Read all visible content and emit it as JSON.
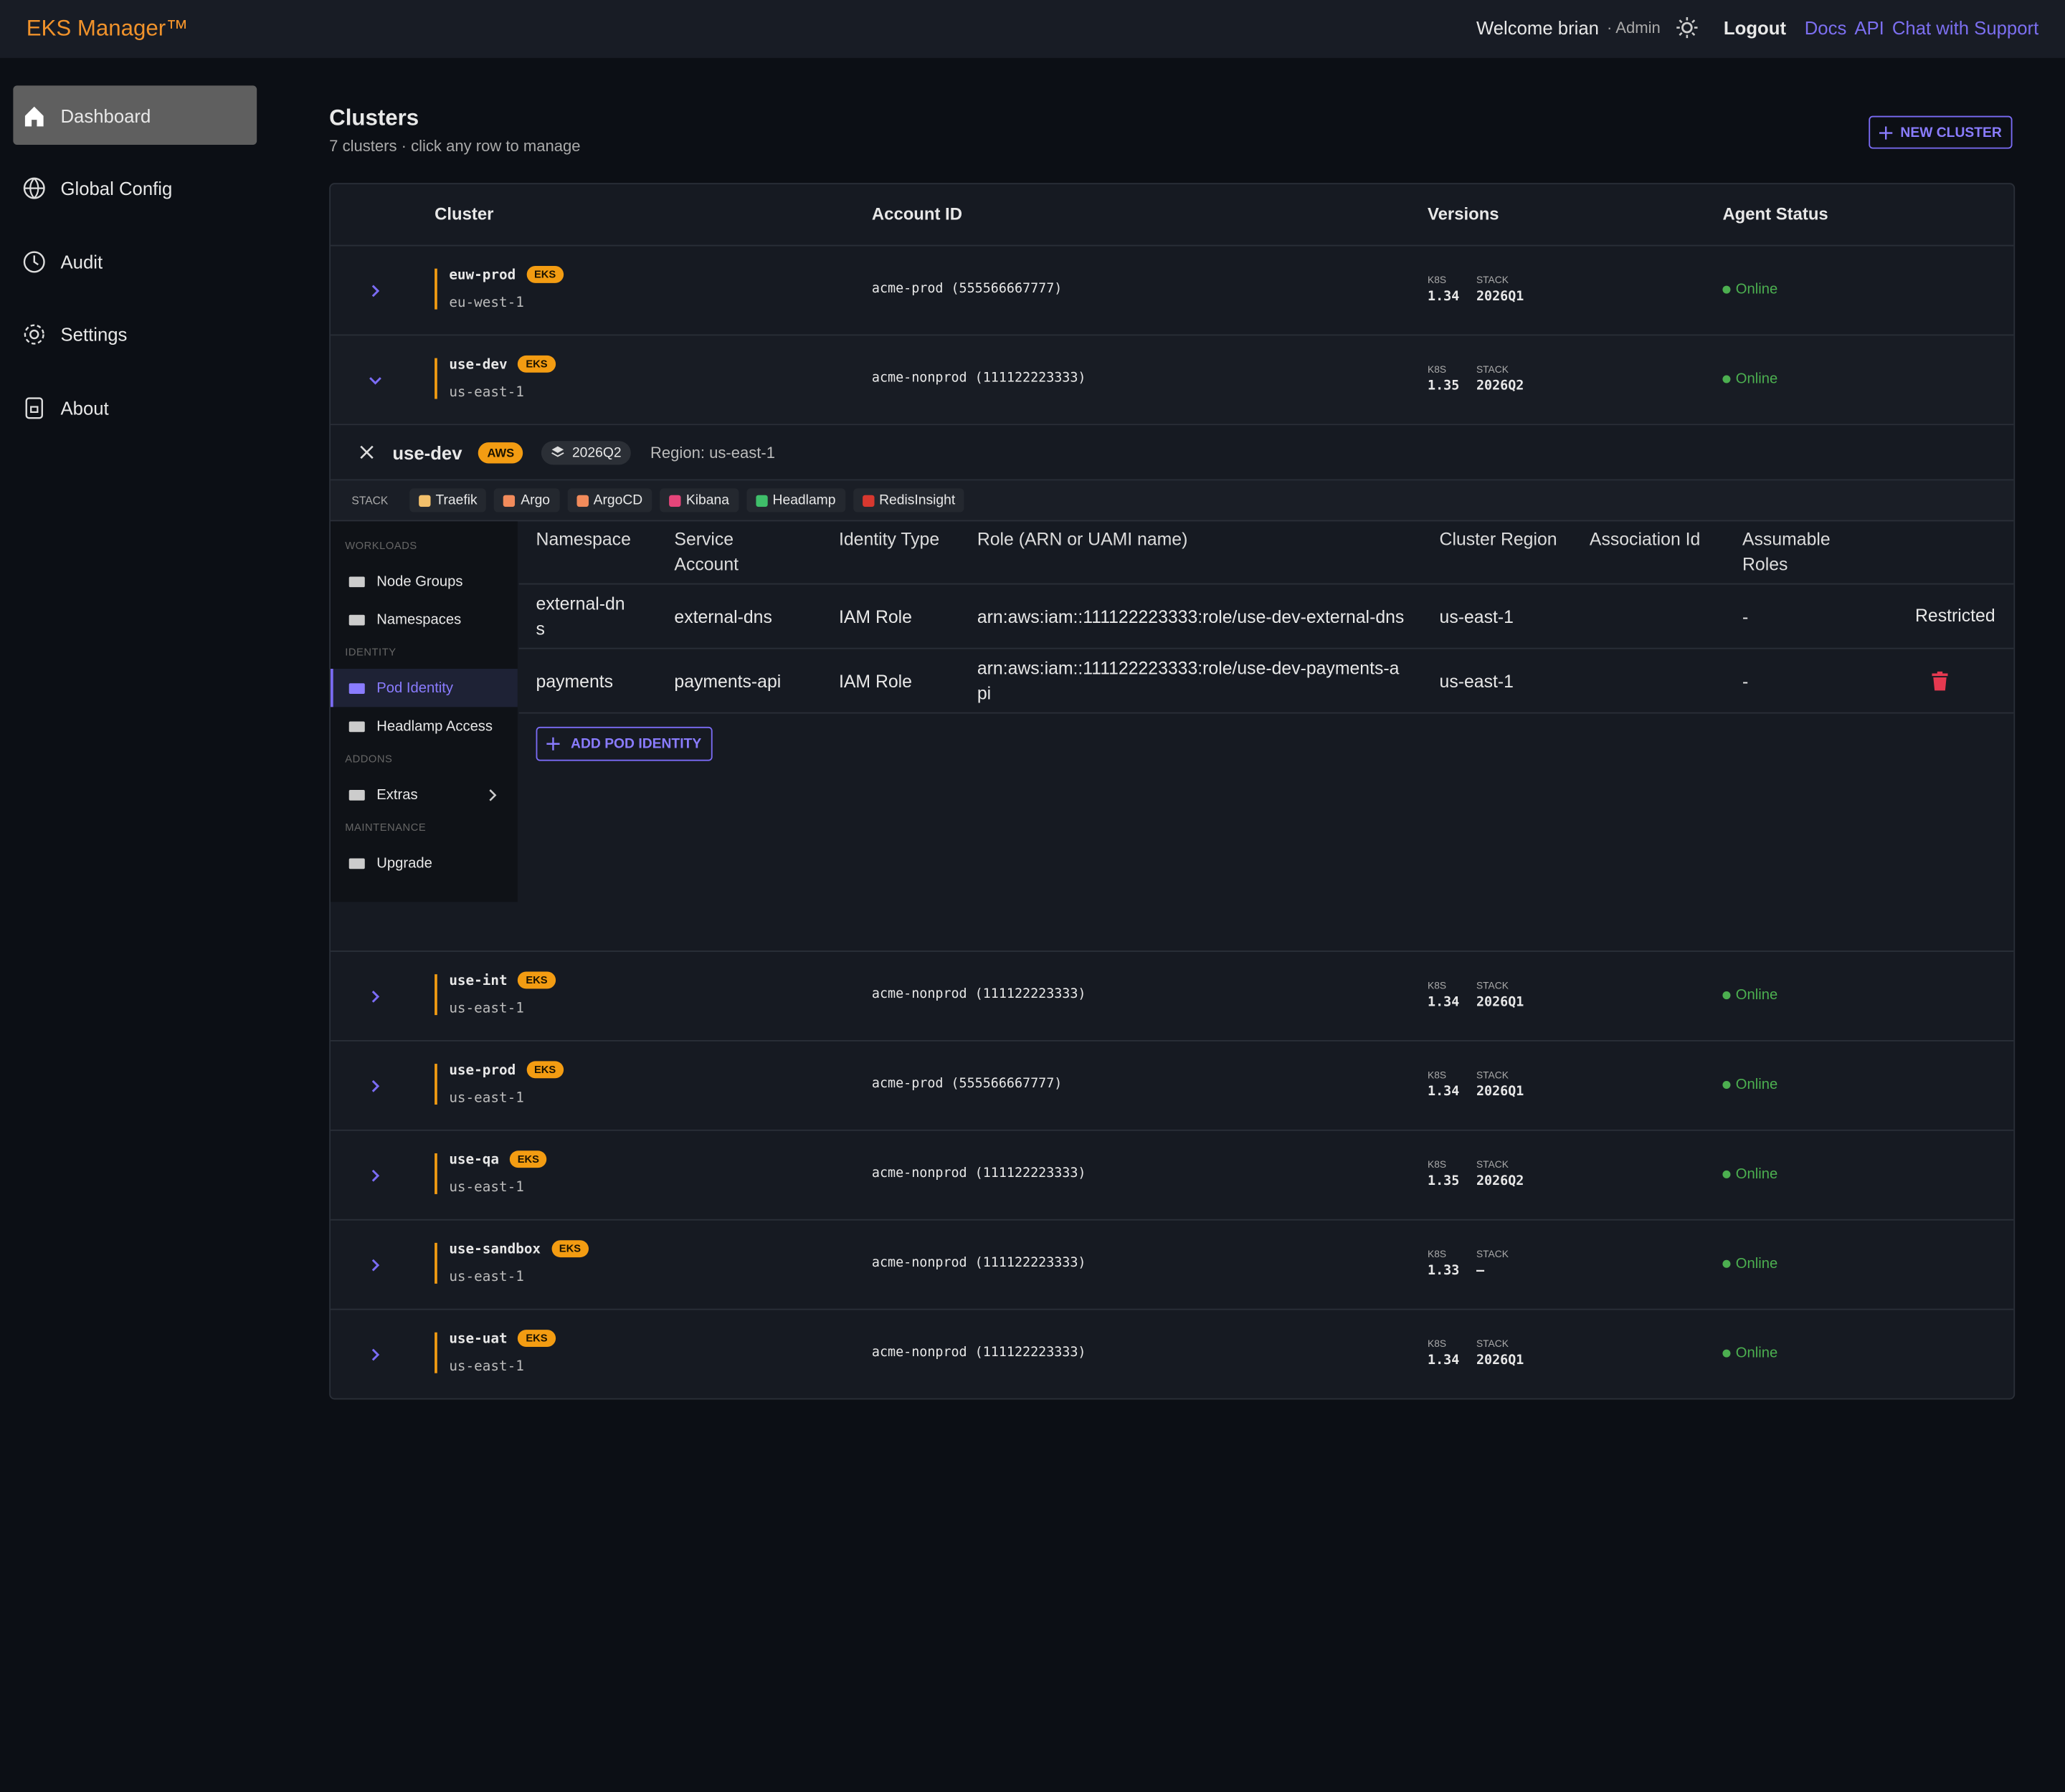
{
  "header": {
    "brand": "EKS Manager™",
    "welcome": "Welcome brian",
    "role": "· Admin",
    "logout": "Logout",
    "links": [
      "Docs",
      "API",
      "Chat with Support"
    ]
  },
  "sidebar": [
    {
      "label": "Dashboard",
      "active": true
    },
    {
      "label": "Global Config"
    },
    {
      "label": "Audit"
    },
    {
      "label": "Settings"
    },
    {
      "label": "About"
    }
  ],
  "page": {
    "title": "Clusters",
    "subtitle": "7 clusters · click any row to manage",
    "new_button": "NEW CLUSTER"
  },
  "table": {
    "columns": [
      "Cluster",
      "Account ID",
      "Versions",
      "Agent Status"
    ],
    "k8s_label": "K8S",
    "stack_label": "STACK",
    "rows": [
      {
        "name": "euw-prod",
        "badge": "EKS",
        "region": "eu-west-1",
        "account": "acme-prod (555566667777)",
        "k8s": "1.34",
        "stack": "2026Q1",
        "status": "Online"
      },
      {
        "name": "use-dev",
        "badge": "EKS",
        "region": "us-east-1",
        "account": "acme-nonprod (111122223333)",
        "k8s": "1.35",
        "stack": "2026Q2",
        "status": "Online",
        "expanded": true
      },
      {
        "name": "use-int",
        "badge": "EKS",
        "region": "us-east-1",
        "account": "acme-nonprod (111122223333)",
        "k8s": "1.34",
        "stack": "2026Q1",
        "status": "Online"
      },
      {
        "name": "use-prod",
        "badge": "EKS",
        "region": "us-east-1",
        "account": "acme-prod (555566667777)",
        "k8s": "1.34",
        "stack": "2026Q1",
        "status": "Online"
      },
      {
        "name": "use-qa",
        "badge": "EKS",
        "region": "us-east-1",
        "account": "acme-nonprod (111122223333)",
        "k8s": "1.35",
        "stack": "2026Q2",
        "status": "Online"
      },
      {
        "name": "use-sandbox",
        "badge": "EKS",
        "region": "us-east-1",
        "account": "acme-nonprod (111122223333)",
        "k8s": "1.33",
        "stack": "—",
        "status": "Online"
      },
      {
        "name": "use-uat",
        "badge": "EKS",
        "region": "us-east-1",
        "account": "acme-nonprod (111122223333)",
        "k8s": "1.34",
        "stack": "2026Q1",
        "status": "Online"
      }
    ]
  },
  "detail": {
    "name": "use-dev",
    "badge": "AWS",
    "stack_version": "2026Q2",
    "region": "Region: us-east-1",
    "stack_label": "STACK",
    "tools": [
      "Traefik",
      "Argo",
      "ArgoCD",
      "Kibana",
      "Headlamp",
      "RedisInsight"
    ],
    "nav": [
      {
        "title": "WORKLOADS",
        "items": [
          {
            "label": "Node Groups"
          },
          {
            "label": "Namespaces"
          }
        ]
      },
      {
        "title": "IDENTITY",
        "items": [
          {
            "label": "Pod Identity",
            "active": true
          },
          {
            "label": "Headlamp Access"
          }
        ]
      },
      {
        "title": "ADDONS",
        "items": [
          {
            "label": "Extras"
          }
        ]
      },
      {
        "title": "MAINTENANCE",
        "items": [
          {
            "label": "Upgrade"
          }
        ]
      }
    ],
    "pod_table": {
      "columns": [
        "Namespace",
        "Service Account",
        "Identity Type",
        "Role (ARN or UAMI name)",
        "Cluster Region",
        "Association Id",
        "Assumable Roles"
      ],
      "rows": [
        {
          "namespace": "external-dns",
          "service_account": "external-dns",
          "identity_type": "IAM Role",
          "role": "arn:aws:iam::111122223333:role/use-dev-external-dns",
          "region": "us-east-1",
          "assumable_roles": "-",
          "action": "Restricted"
        },
        {
          "namespace": "payments",
          "service_account": "payments-api",
          "identity_type": "IAM Role",
          "role": "arn:aws:iam::111122223333:role/use-dev-payments-api",
          "region": "us-east-1",
          "assumable_roles": "-"
        }
      ]
    },
    "add_button": "ADD POD IDENTITY"
  }
}
